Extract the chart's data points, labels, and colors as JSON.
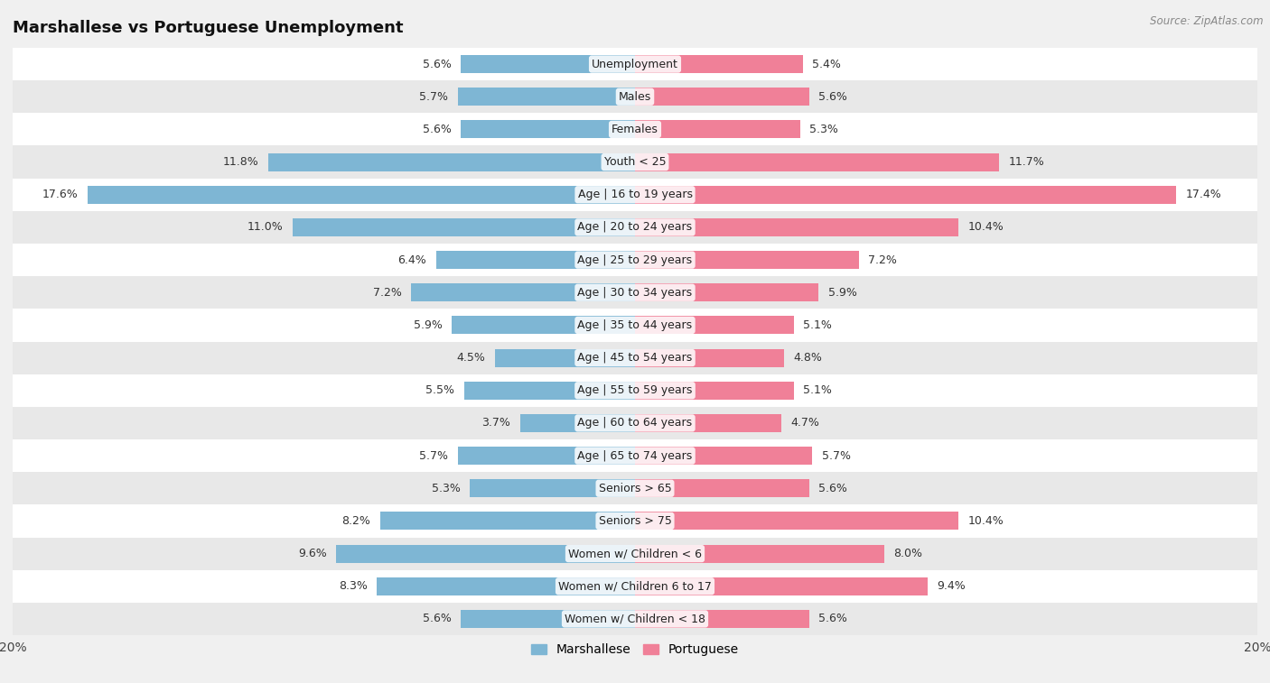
{
  "title": "Marshallese vs Portuguese Unemployment",
  "source": "Source: ZipAtlas.com",
  "categories": [
    "Unemployment",
    "Males",
    "Females",
    "Youth < 25",
    "Age | 16 to 19 years",
    "Age | 20 to 24 years",
    "Age | 25 to 29 years",
    "Age | 30 to 34 years",
    "Age | 35 to 44 years",
    "Age | 45 to 54 years",
    "Age | 55 to 59 years",
    "Age | 60 to 64 years",
    "Age | 65 to 74 years",
    "Seniors > 65",
    "Seniors > 75",
    "Women w/ Children < 6",
    "Women w/ Children 6 to 17",
    "Women w/ Children < 18"
  ],
  "marshallese": [
    5.6,
    5.7,
    5.6,
    11.8,
    17.6,
    11.0,
    6.4,
    7.2,
    5.9,
    4.5,
    5.5,
    3.7,
    5.7,
    5.3,
    8.2,
    9.6,
    8.3,
    5.6
  ],
  "portuguese": [
    5.4,
    5.6,
    5.3,
    11.7,
    17.4,
    10.4,
    7.2,
    5.9,
    5.1,
    4.8,
    5.1,
    4.7,
    5.7,
    5.6,
    10.4,
    8.0,
    9.4,
    5.6
  ],
  "marshallese_color": "#7EB6D4",
  "portuguese_color": "#F08098",
  "bar_height": 0.55,
  "background_color": "#f0f0f0",
  "row_bg_odd": "#e8e8e8",
  "row_bg_even": "#ffffff",
  "xlim": 20.0,
  "category_fontsize": 9,
  "title_fontsize": 13,
  "value_label_fontsize": 9,
  "tick_fontsize": 10,
  "legend_fontsize": 10
}
